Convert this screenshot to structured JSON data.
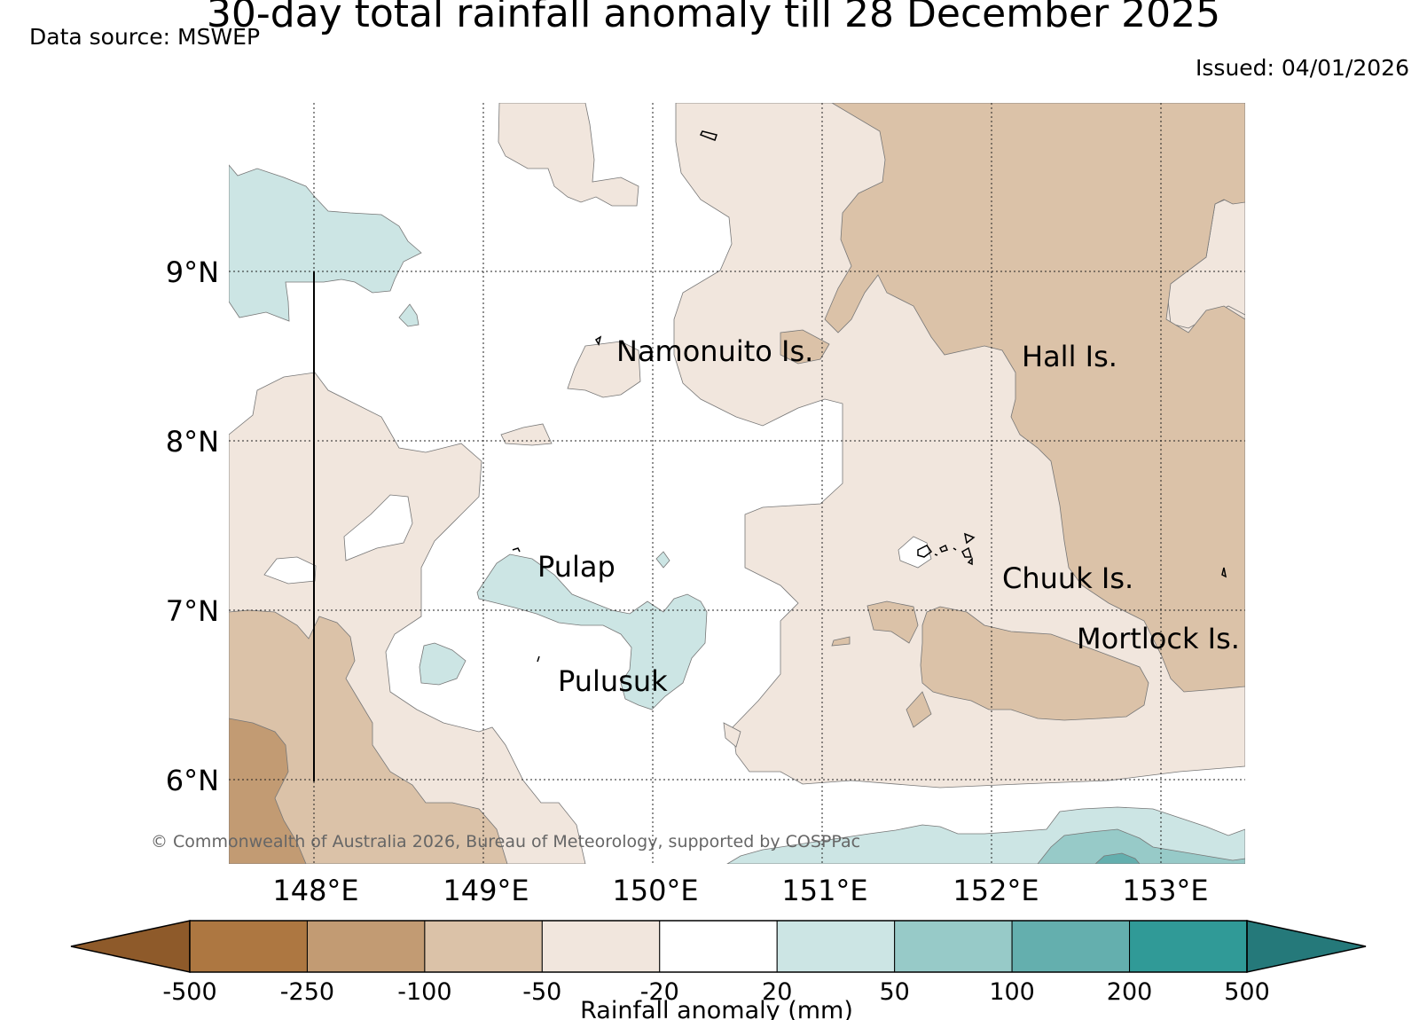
{
  "title": "30-day total rainfall anomaly till 28 December 2025",
  "data_source": "Data source: MSWEP",
  "issued": "Issued: 04/01/2026",
  "copyright": "© Commonwealth of Australia 2026, Bureau of Meteorology, supported by COSPPac",
  "map": {
    "lon_range": [
      147.5,
      153.5
    ],
    "lat_range": [
      5.5,
      10.0
    ],
    "lon_ticks": [
      "148°E",
      "149°E",
      "150°E",
      "151°E",
      "152°E",
      "153°E"
    ],
    "lat_ticks": [
      "9°N",
      "8°N",
      "7°N",
      "6°N"
    ],
    "gridlines": "dotted",
    "place_labels": [
      "Namonuito Is.",
      "Hall Is.",
      "Pulap",
      "Chuuk Is.",
      "Mortlock Is.",
      "Pulusuk"
    ]
  },
  "colorbar": {
    "label": "Rainfall anomaly (mm)",
    "ticks": [
      "-500",
      "-250",
      "-100",
      "-50",
      "-20",
      "20",
      "50",
      "100",
      "200",
      "500"
    ],
    "colors": [
      "#8e5a2a",
      "#ad7741",
      "#c29b73",
      "#dbc2a8",
      "#f1e6dd",
      "#ffffff",
      "#cce5e4",
      "#97cac8",
      "#64afae",
      "#309a97",
      "#25797a"
    ],
    "extend": "both"
  }
}
